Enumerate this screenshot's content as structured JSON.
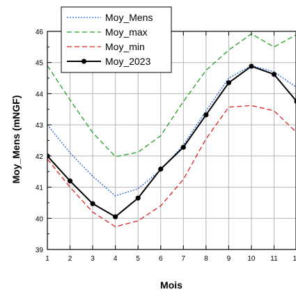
{
  "chart_data": {
    "type": "line",
    "xlabel": "Mois",
    "ylabel": "Moy_Mens (mNGF)",
    "x": [
      1,
      2,
      3,
      4,
      5,
      6,
      7,
      8,
      9,
      10,
      11,
      12
    ],
    "x_tick_labels": [
      "1",
      "2",
      "3",
      "4",
      "5",
      "6",
      "7",
      "8",
      "9",
      "10",
      "11",
      "12"
    ],
    "xlim": [
      1,
      12
    ],
    "ylim": [
      39,
      46
    ],
    "y_ticks": [
      39,
      40,
      41,
      42,
      43,
      44,
      45,
      46
    ],
    "grid": true,
    "legend_position": "top-left",
    "series": [
      {
        "name": "Moy_Mens",
        "color": "#1f5fd6",
        "style": "dotted",
        "values": [
          43.0,
          42.1,
          41.35,
          40.72,
          40.95,
          41.55,
          42.35,
          43.45,
          44.5,
          44.9,
          44.7,
          44.2
        ]
      },
      {
        "name": "Moy_max",
        "color": "#22a022",
        "style": "dashed",
        "values": [
          44.9,
          43.8,
          42.75,
          41.98,
          42.12,
          42.65,
          43.75,
          44.75,
          45.4,
          45.92,
          45.5,
          45.9
        ]
      },
      {
        "name": "Moy_min",
        "color": "#e02020",
        "style": "dashed",
        "values": [
          41.9,
          41.0,
          40.2,
          39.73,
          39.92,
          40.4,
          41.25,
          42.55,
          43.57,
          43.62,
          43.45,
          42.75
        ]
      },
      {
        "name": "Moy_2023",
        "color": "#000000",
        "style": "solid-markers",
        "values": [
          42.0,
          41.2,
          40.47,
          40.05,
          40.65,
          41.58,
          42.28,
          43.32,
          44.35,
          44.88,
          44.62,
          43.75
        ]
      }
    ]
  }
}
